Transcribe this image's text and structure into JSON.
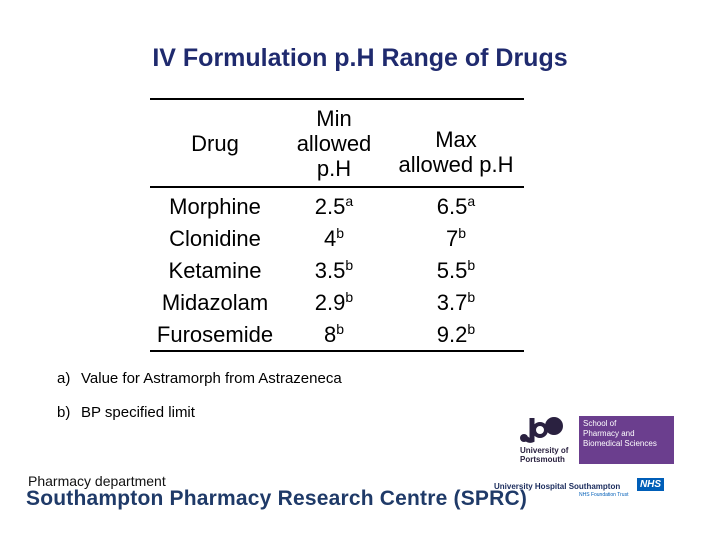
{
  "title": "IV Formulation p.H Range of Drugs",
  "table": {
    "headers": {
      "drug": "Drug",
      "min": [
        "Min",
        "allowed",
        "p.H"
      ],
      "max": [
        "Max",
        "allowed p.H"
      ]
    },
    "rows": [
      {
        "drug": "Morphine",
        "min": "2.5",
        "min_note": "a",
        "max": "6.5",
        "max_note": "a"
      },
      {
        "drug": "Clonidine",
        "min": "4",
        "min_note": "b",
        "max": "7",
        "max_note": "b"
      },
      {
        "drug": "Ketamine",
        "min": "3.5",
        "min_note": "b",
        "max": "5.5",
        "max_note": "b"
      },
      {
        "drug": "Midazolam",
        "min": "2.9",
        "min_note": "b",
        "max": "3.7",
        "max_note": "b"
      },
      {
        "drug": "Furosemide",
        "min": "8",
        "min_note": "b",
        "max": "9.2",
        "max_note": "b"
      }
    ]
  },
  "notes": [
    {
      "mark": "a)",
      "text": "Value for Astramorph from Astrazeneca"
    },
    {
      "mark": "b)",
      "text": "BP specified limit"
    }
  ],
  "footer": {
    "department": "Pharmacy department",
    "centre": "Southampton Pharmacy Research Centre (SPRC)"
  },
  "logos": {
    "portsmouth": {
      "name": [
        "University of",
        "Portsmouth"
      ],
      "school": [
        "School of",
        "Pharmacy and",
        "Biomedical Sciences"
      ],
      "color": "#6b3e8e"
    },
    "uhs": {
      "name": "University Hospital Southampton",
      "badge": "NHS",
      "sub": "NHS Foundation Trust",
      "color": "#005eb8"
    }
  }
}
